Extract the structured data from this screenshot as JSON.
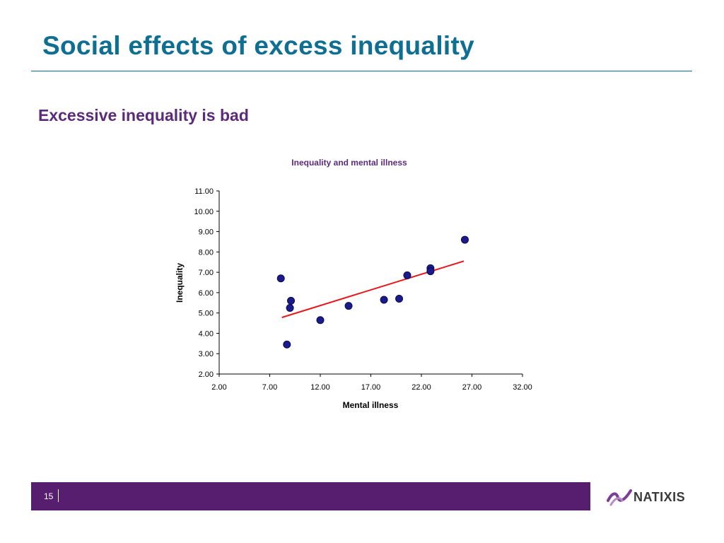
{
  "slide": {
    "title": "Social effects of excess inequality",
    "subtitle": "Excessive inequality is bad",
    "page_number": "15",
    "logo_text": "NATIXIS"
  },
  "colors": {
    "title": "#0e6f93",
    "subtitle": "#5c2a7a",
    "footer": "#571d6e",
    "marker": "#1a1a8c",
    "trendline": "#e8161d"
  },
  "chart_data": {
    "type": "scatter",
    "title": "Inequality and mental illness",
    "xlabel": "Mental illness",
    "ylabel": "Inequality",
    "xlim": [
      2,
      32
    ],
    "ylim": [
      2,
      11
    ],
    "x_ticks": [
      "2.00",
      "7.00",
      "12.00",
      "17.00",
      "22.00",
      "27.00",
      "32.00"
    ],
    "y_ticks": [
      "2.00",
      "3.00",
      "4.00",
      "5.00",
      "6.00",
      "7.00",
      "8.00",
      "9.00",
      "10.00",
      "11.00"
    ],
    "points": [
      {
        "x": 8.1,
        "y": 6.7
      },
      {
        "x": 8.7,
        "y": 3.45
      },
      {
        "x": 9.0,
        "y": 5.25
      },
      {
        "x": 9.1,
        "y": 5.6
      },
      {
        "x": 12.0,
        "y": 4.65
      },
      {
        "x": 14.8,
        "y": 5.35
      },
      {
        "x": 18.3,
        "y": 5.65
      },
      {
        "x": 19.8,
        "y": 5.7
      },
      {
        "x": 20.6,
        "y": 6.85
      },
      {
        "x": 22.9,
        "y": 7.2
      },
      {
        "x": 22.9,
        "y": 7.05
      },
      {
        "x": 26.3,
        "y": 8.6
      }
    ],
    "trendline": {
      "x": [
        8.2,
        26.2
      ],
      "y": [
        4.78,
        7.55
      ]
    },
    "grid": false,
    "legend": "none"
  }
}
